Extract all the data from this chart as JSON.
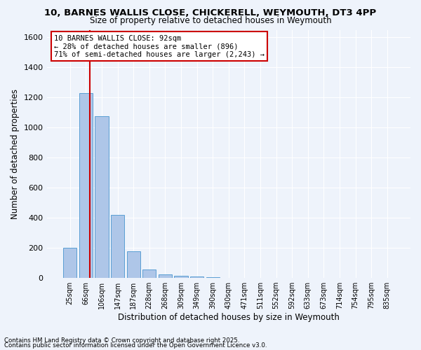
{
  "title": "10, BARNES WALLIS CLOSE, CHICKERELL, WEYMOUTH, DT3 4PP",
  "subtitle": "Size of property relative to detached houses in Weymouth",
  "xlabel": "Distribution of detached houses by size in Weymouth",
  "ylabel": "Number of detached properties",
  "bar_values": [
    200,
    1230,
    1075,
    420,
    175,
    55,
    25,
    15,
    10,
    5,
    0,
    0,
    0,
    0,
    0,
    0,
    0,
    0,
    0,
    0,
    0
  ],
  "bar_labels": [
    "25sqm",
    "66sqm",
    "106sqm",
    "147sqm",
    "187sqm",
    "228sqm",
    "268sqm",
    "309sqm",
    "349sqm",
    "390sqm",
    "430sqm",
    "471sqm",
    "511sqm",
    "552sqm",
    "592sqm",
    "633sqm",
    "673sqm",
    "714sqm",
    "754sqm",
    "795sqm",
    "835sqm"
  ],
  "bar_color": "#aec6e8",
  "bar_edgecolor": "#5a9fd4",
  "ylim": [
    0,
    1650
  ],
  "yticks": [
    0,
    200,
    400,
    600,
    800,
    1000,
    1200,
    1400,
    1600
  ],
  "red_line_x": 1.27,
  "annotation_line1": "10 BARNES WALLIS CLOSE: 92sqm",
  "annotation_line2": "← 28% of detached houses are smaller (896)",
  "annotation_line3": "71% of semi-detached houses are larger (2,243) →",
  "annotation_color": "#cc0000",
  "bg_color": "#eef3fb",
  "footer1": "Contains HM Land Registry data © Crown copyright and database right 2025.",
  "footer2": "Contains public sector information licensed under the Open Government Licence v3.0."
}
